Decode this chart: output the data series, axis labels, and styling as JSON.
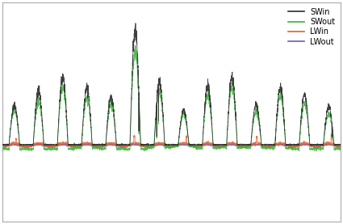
{
  "legend_labels": [
    "SWin",
    "SWout",
    "LWin",
    "LWout"
  ],
  "SWin_color": "#2a2a2a",
  "SWout_color": "#3ab03a",
  "LWin_color": "#e06030",
  "LWout_color": "#6060c0",
  "n_days": 14,
  "samples_per_day": 288,
  "background": "#ffffff",
  "border_color": "#aaaaaa",
  "peak_heights": [
    180,
    250,
    310,
    260,
    220,
    520,
    290,
    160,
    270,
    310,
    185,
    260,
    230,
    175
  ],
  "lw_midline": 0,
  "ylim_low": -350,
  "ylim_high": 650
}
